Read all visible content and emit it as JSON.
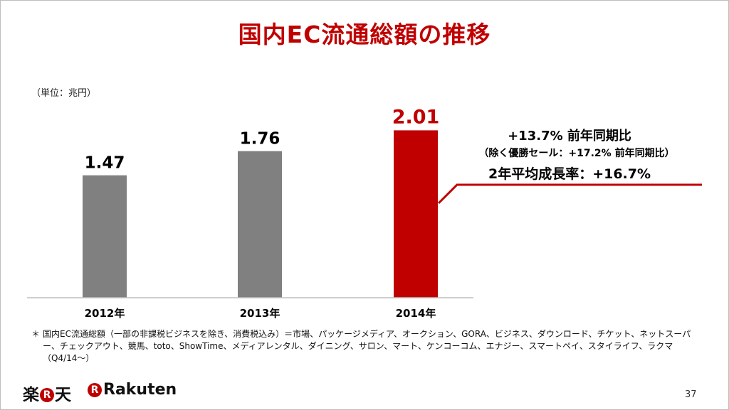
{
  "title": "国内EC流通総額の推移",
  "unit_label": "（単位：兆円）",
  "chart_data": {
    "type": "bar",
    "categories": [
      "2012年",
      "2013年",
      "2014年"
    ],
    "values": [
      1.47,
      1.76,
      2.01
    ],
    "value_labels": [
      "1.47",
      "1.76",
      "2.01"
    ],
    "ylim": [
      0,
      2.15
    ],
    "bar_colors": [
      "#808080",
      "#808080",
      "#c00000"
    ],
    "highlight_label_color": "#c00000",
    "grid": false
  },
  "callout": {
    "line1": "+13.7% 前年同期比",
    "line2": "（除く優勝セール：+17.2% 前年同期比）",
    "line3": "2年平均成長率：+16.7%",
    "line_color": "#c00000"
  },
  "footnote": {
    "mark": "＊",
    "text": "国内EC流通総額（一部の非課税ビジネスを除き、消費税込み）＝市場、パッケージメディア、オークション、GORA、ビジネス、ダウンロード、チケット、ネットスーパー、チェックアウト、競馬、toto、ShowTime、メディアレンタル、ダイニング、サロン、マート、ケンコーコム、エナジー、スマートペイ、スタイライフ、ラクマ（Q4/14～）"
  },
  "logos": {
    "kanji_left": "楽",
    "kanji_r": "R",
    "kanji_right": "天",
    "en_r": "R",
    "en_text": "Rakuten"
  },
  "page_number": "37"
}
